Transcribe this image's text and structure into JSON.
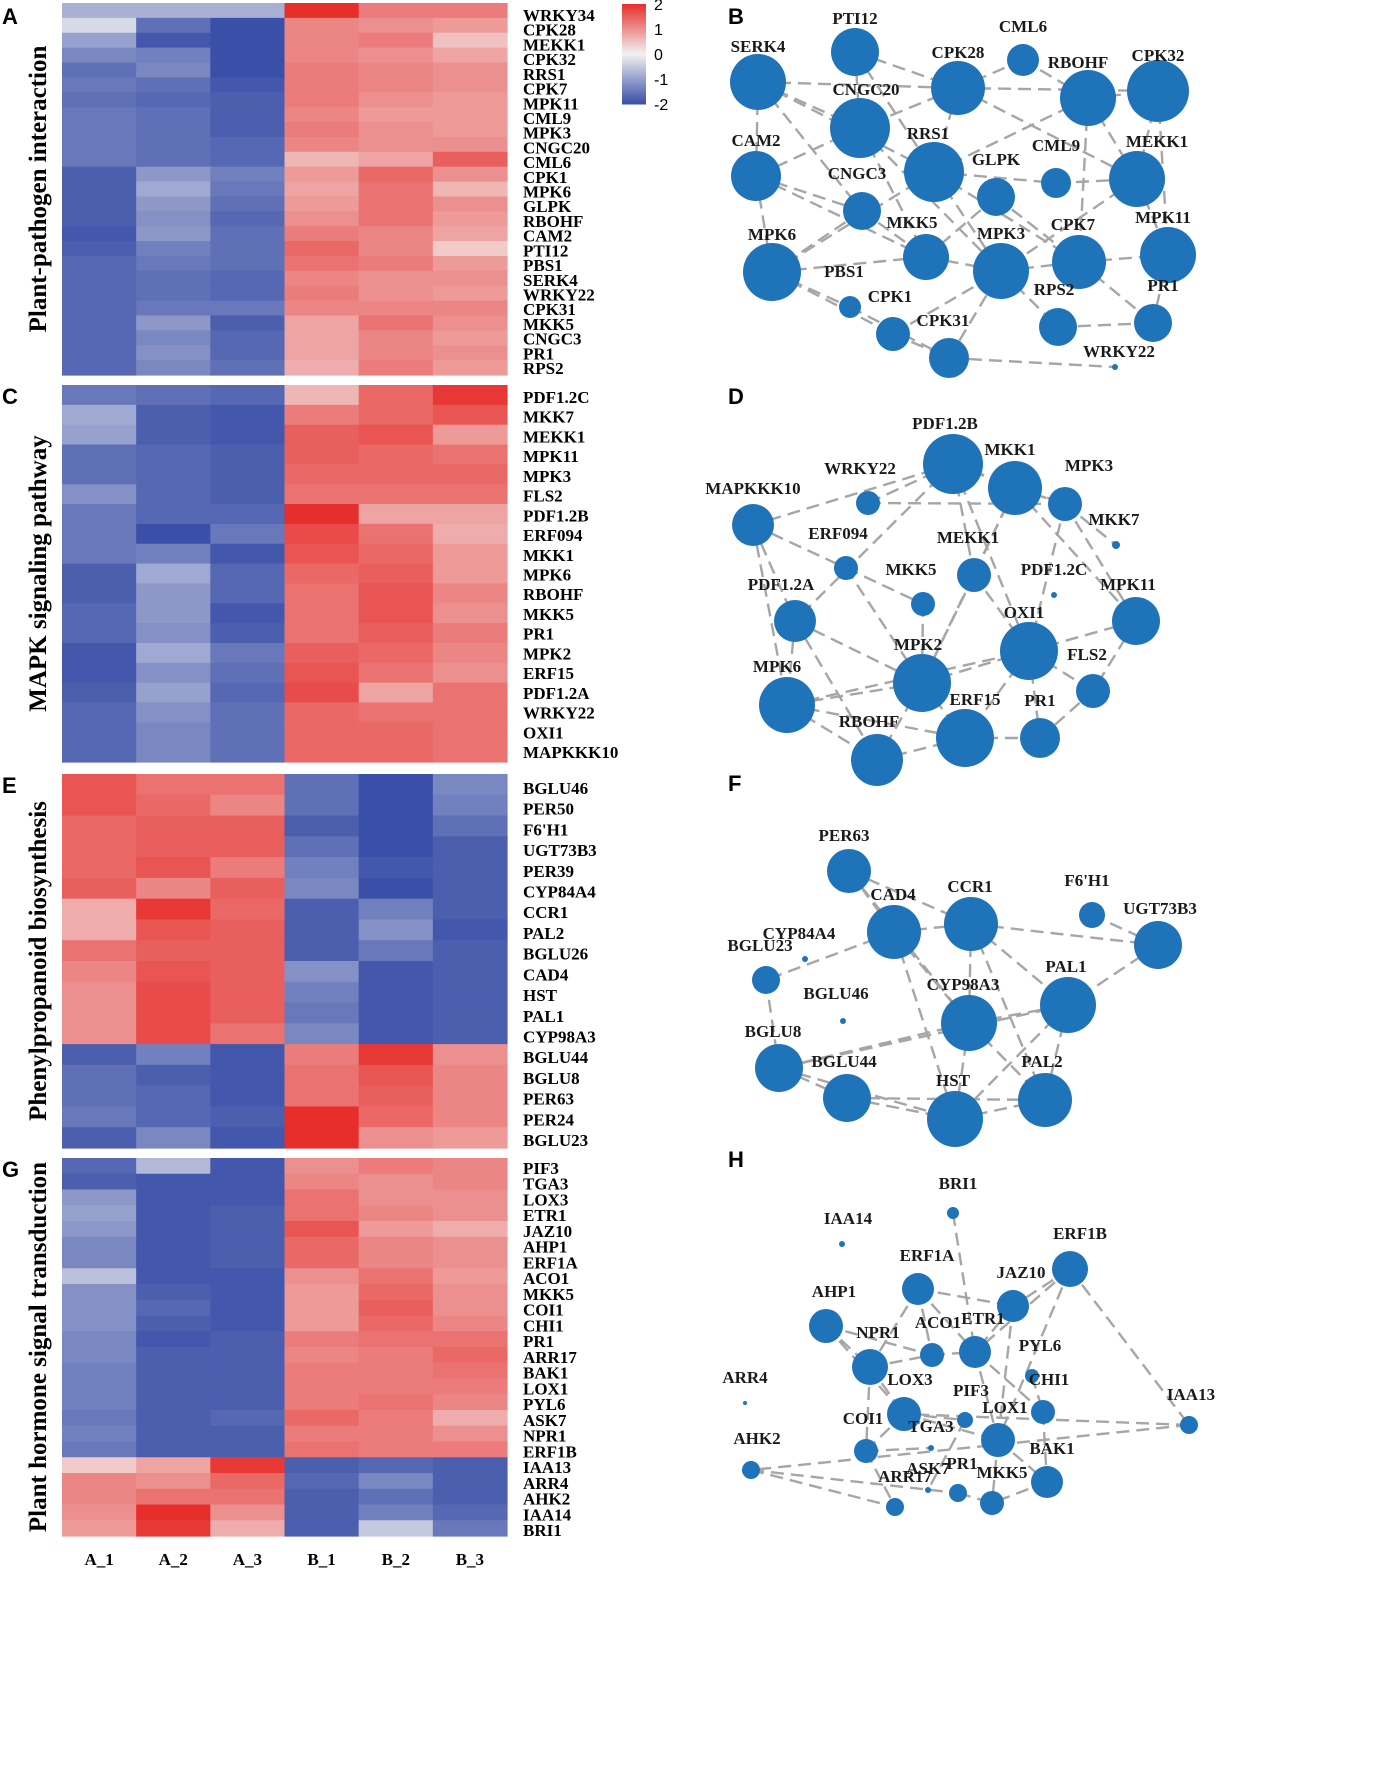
{
  "chart_data": [
    {
      "type": "heatmap",
      "panel": "A",
      "title": "Plant-pathogen interaction",
      "columns": [
        "A_1",
        "A_2",
        "A_3",
        "B_1",
        "B_2",
        "B_3"
      ],
      "rows": [
        "WRKY34",
        "CPK28",
        "MEKK1",
        "CPK32",
        "RRS1",
        "CPK7",
        "MPK11",
        "CML9",
        "MPK3",
        "CNGC20",
        "CML6",
        "CPK1",
        "MPK6",
        "GLPK",
        "RBOHF",
        "CAM2",
        "PTI12",
        "PBS1",
        "SERK4",
        "WRKY22",
        "CPK31",
        "MKK5",
        "CNGC3",
        "PR1",
        "RPS2"
      ],
      "values": [
        [
          -0.8,
          -0.8,
          -0.8,
          2.0,
          1.2,
          1.2
        ],
        [
          -0.3,
          -1.6,
          -2.0,
          1.1,
          1.0,
          0.9
        ],
        [
          -1.0,
          -1.9,
          -2.0,
          1.1,
          1.2,
          0.5
        ],
        [
          -1.3,
          -1.4,
          -2.0,
          1.1,
          1.0,
          0.8
        ],
        [
          -1.6,
          -1.3,
          -2.0,
          1.2,
          1.1,
          1.0
        ],
        [
          -1.5,
          -1.6,
          -1.9,
          1.2,
          1.1,
          1.0
        ],
        [
          -1.6,
          -1.7,
          -1.8,
          1.2,
          1.0,
          0.9
        ],
        [
          -1.5,
          -1.6,
          -1.8,
          1.1,
          0.9,
          0.9
        ],
        [
          -1.5,
          -1.6,
          -1.8,
          1.2,
          1.0,
          0.9
        ],
        [
          -1.5,
          -1.6,
          -1.7,
          1.1,
          1.0,
          1.0
        ],
        [
          -1.5,
          -1.6,
          -1.7,
          0.6,
          0.8,
          1.5
        ],
        [
          -1.8,
          -1.1,
          -1.4,
          0.9,
          1.4,
          1.0
        ],
        [
          -1.8,
          -0.9,
          -1.5,
          0.8,
          1.3,
          0.6
        ],
        [
          -1.8,
          -1.1,
          -1.6,
          0.9,
          1.3,
          1.0
        ],
        [
          -1.8,
          -1.2,
          -1.7,
          1.0,
          1.3,
          0.9
        ],
        [
          -1.9,
          -1.1,
          -1.6,
          1.2,
          1.1,
          0.8
        ],
        [
          -1.8,
          -1.4,
          -1.6,
          1.4,
          1.1,
          0.4
        ],
        [
          -1.7,
          -1.5,
          -1.6,
          1.3,
          1.2,
          0.9
        ],
        [
          -1.7,
          -1.6,
          -1.7,
          1.1,
          1.0,
          1.0
        ],
        [
          -1.7,
          -1.6,
          -1.7,
          1.2,
          1.0,
          0.9
        ],
        [
          -1.7,
          -1.5,
          -1.5,
          1.1,
          1.1,
          1.1
        ],
        [
          -1.7,
          -1.1,
          -1.8,
          0.8,
          1.3,
          1.0
        ],
        [
          -1.7,
          -1.3,
          -1.7,
          0.8,
          1.1,
          0.9
        ],
        [
          -1.7,
          -1.2,
          -1.7,
          0.8,
          1.1,
          1.0
        ],
        [
          -1.7,
          -1.3,
          -1.6,
          0.7,
          1.2,
          0.9
        ]
      ],
      "color_scale": {
        "min": -2,
        "max": 2,
        "low_color": "#3a4fa8",
        "mid_color": "#f2f2f2",
        "high_color": "#e62e2b",
        "ticks": [
          2,
          1,
          0,
          -1,
          -2
        ]
      }
    },
    {
      "type": "network",
      "panel": "B",
      "nodes": [
        {
          "label": "SERK4",
          "degree": 9
        },
        {
          "label": "PTI12",
          "degree": 6
        },
        {
          "label": "CML6",
          "degree": 3
        },
        {
          "label": "CPK28",
          "degree": 8
        },
        {
          "label": "RBOHF",
          "degree": 9
        },
        {
          "label": "CPK32",
          "degree": 9
        },
        {
          "label": "CNGC20",
          "degree": 10
        },
        {
          "label": "CAM2",
          "degree": 7
        },
        {
          "label": "RRS1",
          "degree": 10
        },
        {
          "label": "GLPK",
          "degree": 4
        },
        {
          "label": "CML9",
          "degree": 3
        },
        {
          "label": "MEKK1",
          "degree": 9
        },
        {
          "label": "CNGC3",
          "degree": 4
        },
        {
          "label": "MKK5",
          "degree": 7
        },
        {
          "label": "MPK3",
          "degree": 9
        },
        {
          "label": "CPK7",
          "degree": 9
        },
        {
          "label": "MPK11",
          "degree": 9
        },
        {
          "label": "MPK6",
          "degree": 9
        },
        {
          "label": "PBS1",
          "degree": 2
        },
        {
          "label": "CPK1",
          "degree": 3
        },
        {
          "label": "CPK31",
          "degree": 4
        },
        {
          "label": "RPS2",
          "degree": 5
        },
        {
          "label": "PR1",
          "degree": 5
        },
        {
          "label": "WRKY22",
          "degree": 1
        }
      ]
    },
    {
      "type": "heatmap",
      "panel": "C",
      "title": "MAPK signaling pathway",
      "columns": [
        "A_1",
        "A_2",
        "A_3",
        "B_1",
        "B_2",
        "B_3"
      ],
      "rows": [
        "PDF1.2C",
        "MKK7",
        "MEKK1",
        "MPK11",
        "MPK3",
        "FLS2",
        "PDF1.2B",
        "ERF094",
        "MKK1",
        "MPK6",
        "RBOHF",
        "MKK5",
        "PR1",
        "MPK2",
        "ERF15",
        "PDF1.2A",
        "WRKY22",
        "OXI1",
        "MAPKKK10"
      ],
      "values": [
        [
          -1.5,
          -1.6,
          -1.7,
          0.6,
          1.4,
          1.9
        ],
        [
          -0.9,
          -1.8,
          -1.9,
          1.2,
          1.4,
          1.6
        ],
        [
          -1.0,
          -1.8,
          -1.9,
          1.5,
          1.6,
          0.9
        ],
        [
          -1.6,
          -1.7,
          -1.8,
          1.5,
          1.4,
          1.3
        ],
        [
          -1.6,
          -1.7,
          -1.8,
          1.4,
          1.4,
          1.4
        ],
        [
          -1.2,
          -1.7,
          -1.8,
          1.3,
          1.3,
          1.3
        ],
        [
          -1.5,
          -1.7,
          -1.7,
          2.0,
          0.8,
          0.8
        ],
        [
          -1.5,
          -2.0,
          -1.5,
          1.7,
          1.3,
          0.7
        ],
        [
          -1.5,
          -1.4,
          -1.9,
          1.6,
          1.4,
          0.9
        ],
        [
          -1.8,
          -0.9,
          -1.7,
          1.4,
          1.5,
          0.9
        ],
        [
          -1.8,
          -1.1,
          -1.7,
          1.3,
          1.6,
          1.1
        ],
        [
          -1.7,
          -1.1,
          -1.9,
          1.3,
          1.6,
          1.0
        ],
        [
          -1.7,
          -1.2,
          -1.8,
          1.3,
          1.5,
          1.2
        ],
        [
          -1.9,
          -0.9,
          -1.5,
          1.5,
          1.4,
          1.1
        ],
        [
          -1.9,
          -1.2,
          -1.6,
          1.6,
          1.3,
          1.0
        ],
        [
          -1.8,
          -1.0,
          -1.7,
          1.7,
          0.8,
          1.3
        ],
        [
          -1.7,
          -1.2,
          -1.6,
          1.4,
          1.3,
          1.3
        ],
        [
          -1.7,
          -1.3,
          -1.6,
          1.4,
          1.4,
          1.3
        ],
        [
          -1.7,
          -1.3,
          -1.6,
          1.4,
          1.4,
          1.3
        ]
      ]
    },
    {
      "type": "network",
      "panel": "D",
      "nodes": [
        {
          "label": "PDF1.2B",
          "degree": 10
        },
        {
          "label": "MKK1",
          "degree": 9
        },
        {
          "label": "MPK3",
          "degree": 9
        },
        {
          "label": "WRKY22",
          "degree": 3
        },
        {
          "label": "MAPKKK10",
          "degree": 5
        },
        {
          "label": "MKK7",
          "degree": 4
        },
        {
          "label": "ERF094",
          "degree": 3
        },
        {
          "label": "MEKK1",
          "degree": 4
        },
        {
          "label": "PDF1.2C",
          "degree": 1
        },
        {
          "label": "MKK5",
          "degree": 3
        },
        {
          "label": "PDF1.2A",
          "degree": 6
        },
        {
          "label": "MPK11",
          "degree": 7
        },
        {
          "label": "OXI1",
          "degree": 10
        },
        {
          "label": "MPK2",
          "degree": 10
        },
        {
          "label": "FLS2",
          "degree": 4
        },
        {
          "label": "MPK6",
          "degree": 9
        },
        {
          "label": "ERF15",
          "degree": 10
        },
        {
          "label": "PR1",
          "degree": 5
        },
        {
          "label": "RBOHF",
          "degree": 9
        }
      ]
    },
    {
      "type": "heatmap",
      "panel": "E",
      "title": "Phenylpropanoid biosynthesis",
      "columns": [
        "A_1",
        "A_2",
        "A_3",
        "B_1",
        "B_2",
        "B_3"
      ],
      "rows": [
        "BGLU46",
        "PER50",
        "F6'H1",
        "UGT73B3",
        "PER39",
        "CYP84A4",
        "CCR1",
        "PAL2",
        "BGLU26",
        "CAD4",
        "HST",
        "PAL1",
        "CYP98A3",
        "BGLU44",
        "BGLU8",
        "PER63",
        "PER24",
        "BGLU23"
      ],
      "values": [
        [
          1.6,
          1.3,
          1.3,
          -1.6,
          -2.0,
          -1.3
        ],
        [
          1.6,
          1.4,
          1.1,
          -1.6,
          -2.0,
          -1.4
        ],
        [
          1.4,
          1.5,
          1.5,
          -1.8,
          -2.0,
          -1.6
        ],
        [
          1.4,
          1.5,
          1.5,
          -1.6,
          -2.0,
          -1.8
        ],
        [
          1.4,
          1.6,
          1.2,
          -1.4,
          -1.9,
          -1.8
        ],
        [
          1.5,
          1.1,
          1.5,
          -1.3,
          -2.0,
          -1.8
        ],
        [
          0.7,
          1.9,
          1.4,
          -1.8,
          -1.4,
          -1.8
        ],
        [
          0.7,
          1.6,
          1.5,
          -1.8,
          -1.2,
          -1.9
        ],
        [
          1.3,
          1.5,
          1.5,
          -1.8,
          -1.5,
          -1.8
        ],
        [
          1.1,
          1.6,
          1.5,
          -1.2,
          -1.9,
          -1.8
        ],
        [
          1.0,
          1.7,
          1.5,
          -1.4,
          -1.9,
          -1.8
        ],
        [
          1.0,
          1.7,
          1.5,
          -1.5,
          -1.9,
          -1.8
        ],
        [
          1.0,
          1.7,
          1.3,
          -1.3,
          -1.9,
          -1.8
        ],
        [
          -1.8,
          -1.4,
          -1.9,
          1.2,
          1.9,
          1.0
        ],
        [
          -1.6,
          -1.8,
          -1.9,
          1.3,
          1.6,
          1.1
        ],
        [
          -1.6,
          -1.7,
          -1.9,
          1.3,
          1.5,
          1.1
        ],
        [
          -1.5,
          -1.7,
          -1.8,
          2.0,
          1.4,
          1.1
        ],
        [
          -1.8,
          -1.3,
          -1.9,
          2.0,
          1.0,
          0.9
        ]
      ]
    },
    {
      "type": "network",
      "panel": "F",
      "nodes": [
        {
          "label": "PER63",
          "degree": 4
        },
        {
          "label": "CAD4",
          "degree": 7
        },
        {
          "label": "CCR1",
          "degree": 7
        },
        {
          "label": "F6'H1",
          "degree": 2
        },
        {
          "label": "UGT73B3",
          "degree": 5
        },
        {
          "label": "CYP84A4",
          "degree": 1
        },
        {
          "label": "BGLU23",
          "degree": 2
        },
        {
          "label": "BGLU46",
          "degree": 1
        },
        {
          "label": "CYP98A3",
          "degree": 8
        },
        {
          "label": "PAL1",
          "degree": 7
        },
        {
          "label": "BGLU8",
          "degree": 5
        },
        {
          "label": "BGLU44",
          "degree": 5
        },
        {
          "label": "HST",
          "degree": 8
        },
        {
          "label": "PAL2",
          "degree": 7
        }
      ]
    },
    {
      "type": "heatmap",
      "panel": "G",
      "title": "Plant hormone signal transduction",
      "columns": [
        "A_1",
        "A_2",
        "A_3",
        "B_1",
        "B_2",
        "B_3"
      ],
      "rows": [
        "PIF3",
        "TGA3",
        "LOX3",
        "ETR1",
        "JAZ10",
        "AHP1",
        "ERF1A",
        "ACO1",
        "MKK5",
        "COI1",
        "CHI1",
        "PR1",
        "ARR17",
        "BAK1",
        "LOX1",
        "PYL6",
        "ASK7",
        "NPR1",
        "ERF1B",
        "IAA13",
        "ARR4",
        "AHK2",
        "IAA14",
        "BRI1"
      ],
      "values": [
        [
          -1.7,
          -0.7,
          -1.9,
          1.0,
          1.2,
          1.1
        ],
        [
          -1.8,
          -1.9,
          -1.9,
          1.1,
          1.0,
          1.1
        ],
        [
          -1.1,
          -1.9,
          -1.9,
          1.3,
          1.0,
          1.0
        ],
        [
          -1.0,
          -1.9,
          -1.8,
          1.3,
          1.1,
          1.0
        ],
        [
          -1.1,
          -1.9,
          -1.8,
          1.6,
          0.9,
          0.7
        ],
        [
          -1.3,
          -1.9,
          -1.8,
          1.4,
          1.1,
          1.0
        ],
        [
          -1.3,
          -1.9,
          -1.8,
          1.4,
          1.1,
          1.0
        ],
        [
          -0.6,
          -1.9,
          -1.9,
          1.0,
          1.3,
          0.9
        ],
        [
          -1.2,
          -1.8,
          -1.9,
          0.9,
          1.4,
          1.0
        ],
        [
          -1.2,
          -1.7,
          -1.9,
          0.9,
          1.5,
          1.0
        ],
        [
          -1.2,
          -1.8,
          -1.9,
          0.9,
          1.4,
          1.1
        ],
        [
          -1.3,
          -1.9,
          -1.8,
          1.2,
          1.3,
          1.3
        ],
        [
          -1.3,
          -1.8,
          -1.8,
          1.1,
          1.2,
          1.4
        ],
        [
          -1.4,
          -1.8,
          -1.8,
          1.2,
          1.2,
          1.3
        ],
        [
          -1.4,
          -1.8,
          -1.8,
          1.2,
          1.2,
          1.2
        ],
        [
          -1.4,
          -1.8,
          -1.8,
          1.2,
          1.3,
          1.1
        ],
        [
          -1.5,
          -1.8,
          -1.7,
          1.4,
          1.2,
          0.7
        ],
        [
          -1.4,
          -1.8,
          -1.8,
          1.2,
          1.2,
          1.0
        ],
        [
          -1.5,
          -1.8,
          -1.8,
          1.3,
          1.2,
          1.2
        ],
        [
          0.4,
          0.8,
          1.9,
          -1.8,
          -1.7,
          -1.8
        ],
        [
          1.1,
          1.0,
          1.4,
          -1.7,
          -1.3,
          -1.8
        ],
        [
          1.1,
          1.3,
          1.3,
          -1.8,
          -1.6,
          -1.8
        ],
        [
          1.0,
          2.0,
          1.0,
          -1.8,
          -1.4,
          -1.7
        ],
        [
          0.9,
          1.9,
          0.7,
          -1.8,
          -0.5,
          -1.5
        ]
      ]
    },
    {
      "type": "network",
      "panel": "H",
      "nodes": [
        {
          "label": "BRI1",
          "degree": 1
        },
        {
          "label": "IAA14",
          "degree": 1
        },
        {
          "label": "ERF1B",
          "degree": 5
        },
        {
          "label": "ERF1A",
          "degree": 5
        },
        {
          "label": "JAZ10",
          "degree": 5
        },
        {
          "label": "AHP1",
          "degree": 5
        },
        {
          "label": "NPR1",
          "degree": 6
        },
        {
          "label": "ACO1",
          "degree": 4
        },
        {
          "label": "ETR1",
          "degree": 5
        },
        {
          "label": "PYL6",
          "degree": 2
        },
        {
          "label": "ARR4",
          "degree": 1
        },
        {
          "label": "CHI1",
          "degree": 4
        },
        {
          "label": "LOX3",
          "degree": 5
        },
        {
          "label": "PIF3",
          "degree": 2
        },
        {
          "label": "LOX1",
          "degree": 5
        },
        {
          "label": "IAA13",
          "degree": 3
        },
        {
          "label": "COI1",
          "degree": 4
        },
        {
          "label": "TGA3",
          "degree": 1
        },
        {
          "label": "AHK2",
          "degree": 3
        },
        {
          "label": "ASK7",
          "degree": 1
        },
        {
          "label": "BAK1",
          "degree": 5
        },
        {
          "label": "PR1",
          "degree": 3
        },
        {
          "label": "ARR17",
          "degree": 3
        },
        {
          "label": "MKK5",
          "degree": 4
        }
      ]
    }
  ]
}
